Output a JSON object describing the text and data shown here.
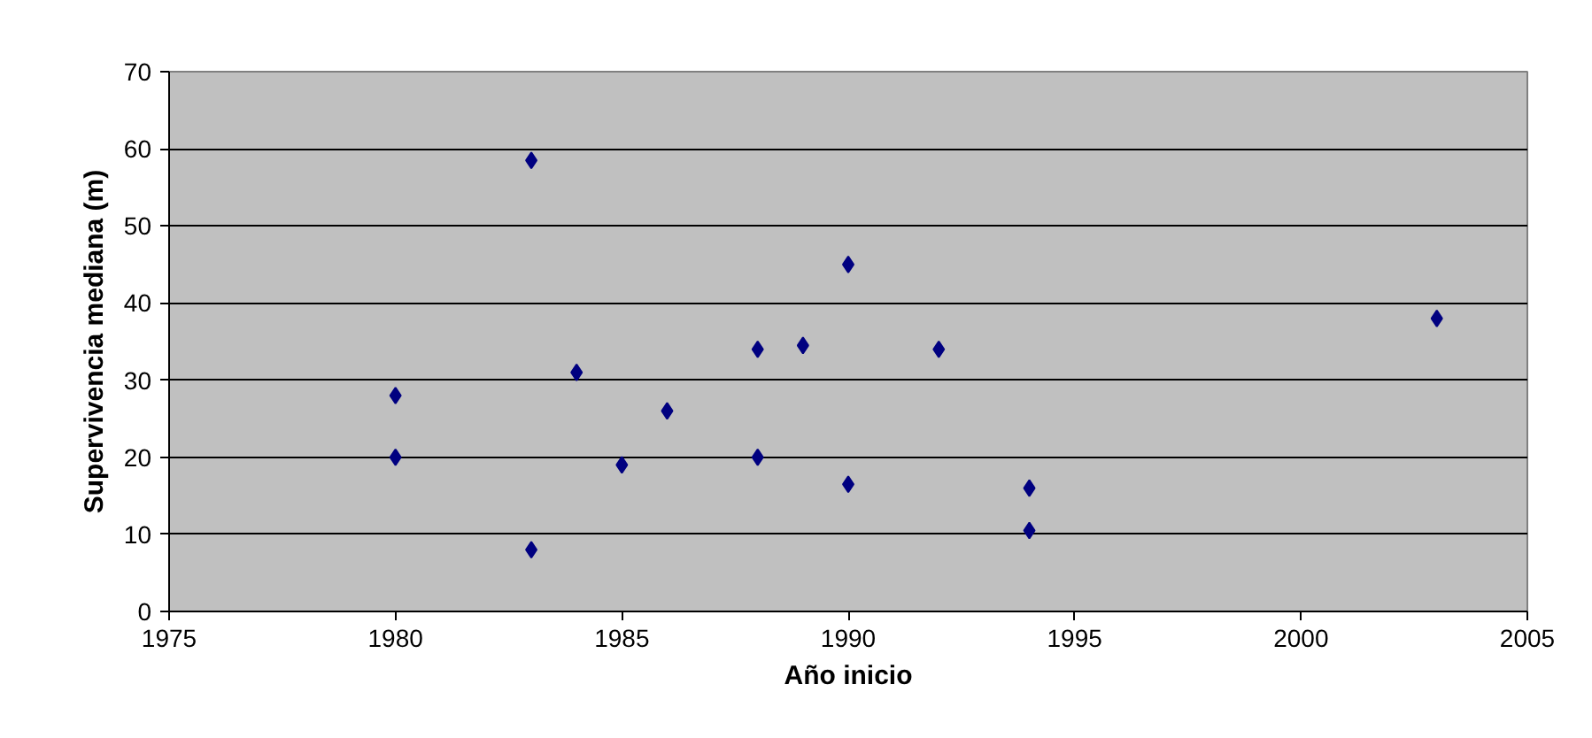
{
  "chart_data": {
    "type": "scatter",
    "xlabel": "Año inicio",
    "ylabel": "Supervivencia mediana (m)",
    "x": [
      1980,
      1980,
      1983,
      1983,
      1984,
      1985,
      1986,
      1988,
      1988,
      1989,
      1990,
      1990,
      1992,
      1994,
      1994,
      2003
    ],
    "series": [
      {
        "color": "#000080",
        "values": [
          28,
          20,
          58.5,
          8,
          31,
          19,
          26,
          34,
          20,
          34.5,
          45,
          16.5,
          34,
          16,
          10.5,
          38
        ]
      }
    ],
    "xlim": [
      1975,
      2005
    ],
    "xticks": [
      1975,
      1980,
      1985,
      1990,
      1995,
      2000,
      2005
    ],
    "ylim": [
      0,
      70
    ],
    "yticks": [
      0,
      10,
      20,
      30,
      40,
      50,
      60,
      70
    ],
    "grid": "y",
    "marker": "diamond"
  }
}
